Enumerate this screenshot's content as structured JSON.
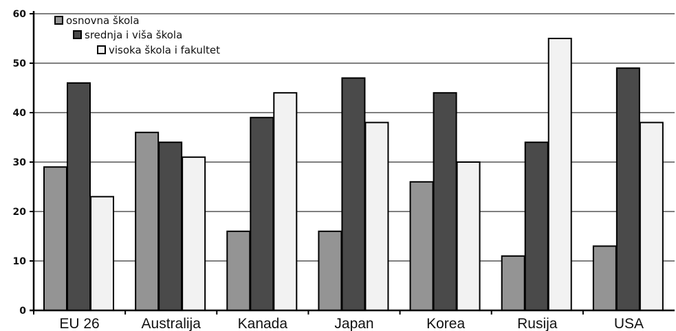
{
  "chart_data": {
    "type": "bar",
    "title": "",
    "xlabel": "",
    "ylabel": "",
    "ylim": [
      0,
      60
    ],
    "yticks": [
      0,
      10,
      20,
      30,
      40,
      50,
      60
    ],
    "grid": true,
    "legend_position": "top-left",
    "categories": [
      "EU 26",
      "Australija",
      "Kanada",
      "Japan",
      "Korea",
      "Rusija",
      "USA"
    ],
    "series": [
      {
        "name": "osnovna škola",
        "color": "#949494",
        "values": [
          29,
          36,
          16,
          16,
          26,
          11,
          13
        ]
      },
      {
        "name": "srednja i viša škola",
        "color": "#4a4a4a",
        "values": [
          46,
          34,
          39,
          47,
          44,
          34,
          49
        ]
      },
      {
        "name": "visoka škola i fakultet",
        "color": "#f2f2f2",
        "values": [
          23,
          31,
          44,
          38,
          30,
          55,
          38
        ]
      }
    ]
  }
}
